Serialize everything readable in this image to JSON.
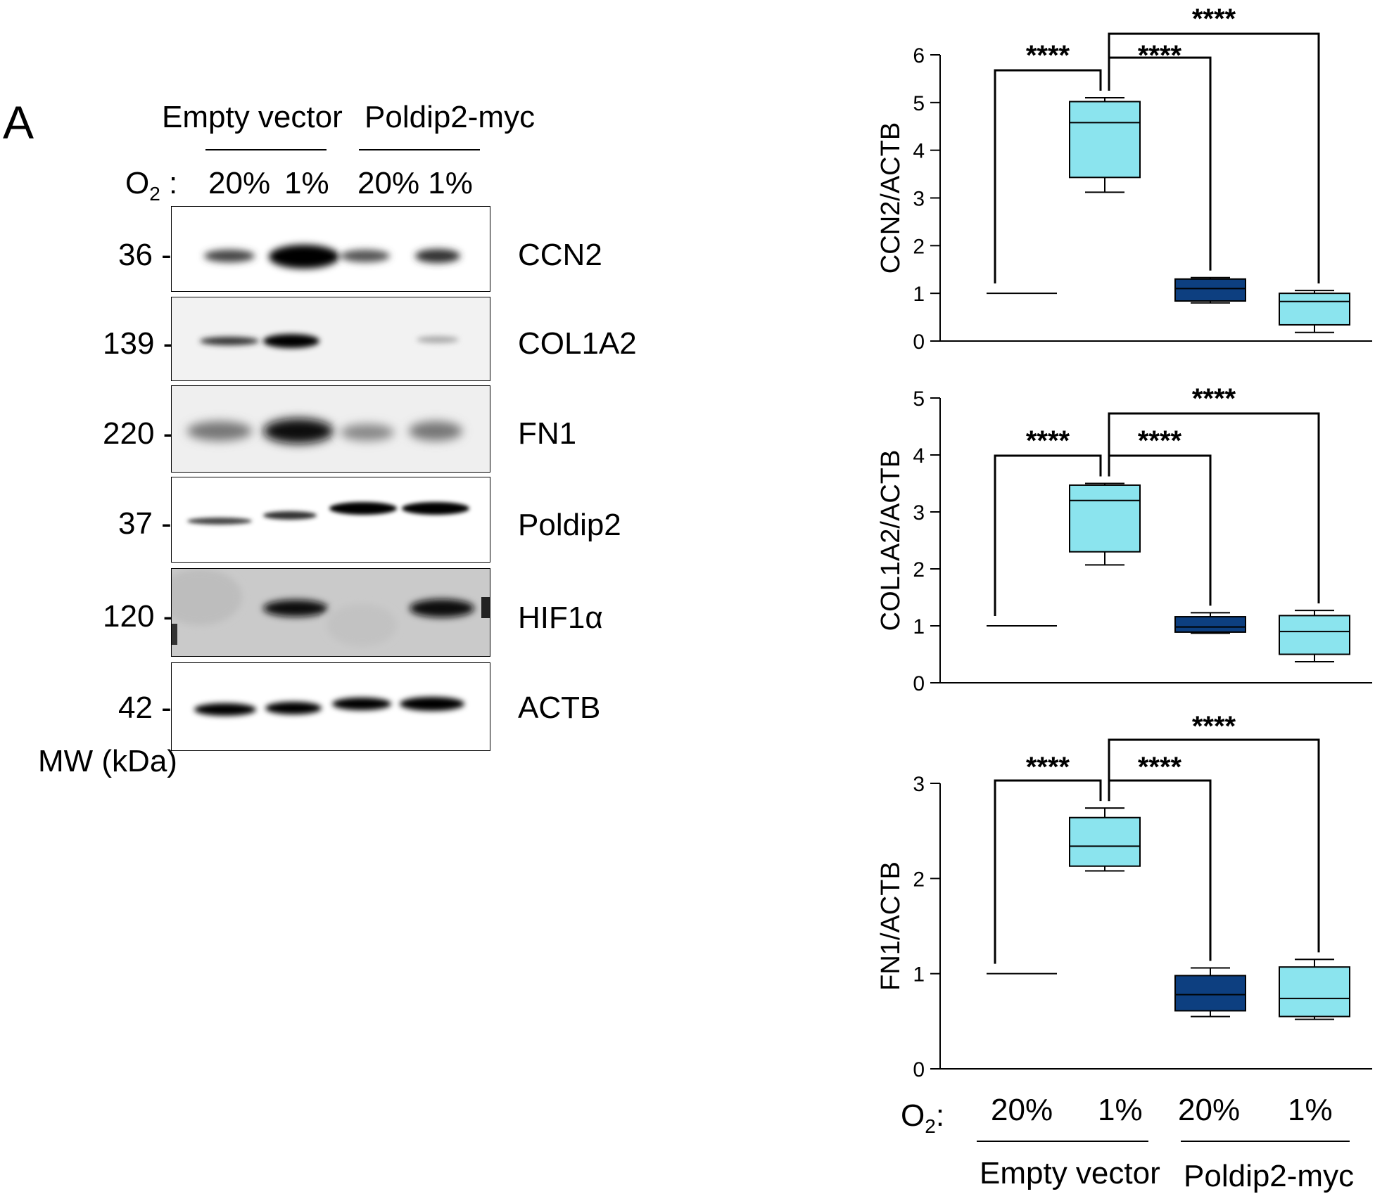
{
  "panel_label": "A",
  "blot": {
    "group_labels": [
      "Empty vector",
      "Poldip2-myc"
    ],
    "o2_label_main": "O",
    "o2_label_sub": "2",
    "o2_label_colon": " :",
    "lane_labels": [
      "20%",
      "1%",
      "20% 1%"
    ],
    "mw_axis_label": "MW (kDa)",
    "rows": [
      {
        "mw": "36 -",
        "protein": "CCN2"
      },
      {
        "mw": "139 -",
        "protein": "COL1A2"
      },
      {
        "mw": "220 -",
        "protein": "FN1"
      },
      {
        "mw": "37 -",
        "protein": "Poldip2"
      },
      {
        "mw": "120 -",
        "protein": "HIF1α"
      },
      {
        "mw": "42 -",
        "protein": "ACTB"
      }
    ]
  },
  "significance_label": "****",
  "x_axis": {
    "o2_label_main": "O",
    "o2_label_sub": "2",
    "o2_label_colon": ":",
    "categories": [
      "20%",
      "1%",
      "20%",
      "1%"
    ],
    "groups": [
      "Empty vector",
      "Poldip2-myc"
    ]
  },
  "colors": {
    "light_box": "#8be4ee",
    "dark_box": "#0d3f80",
    "line": "#000000"
  },
  "chart_data": [
    {
      "type": "box",
      "ylabel": "CCN2/ACTB",
      "ylim": [
        0,
        6
      ],
      "yticks": [
        0,
        1,
        2,
        3,
        4,
        5,
        6
      ],
      "categories": [
        "20%",
        "1%",
        "20%",
        "1%"
      ],
      "boxes": [
        {
          "min": 1.0,
          "q1": 1.0,
          "median": 1.0,
          "q3": 1.0,
          "max": 1.0,
          "color": "none"
        },
        {
          "min": 3.12,
          "q1": 3.43,
          "median": 4.58,
          "q3": 5.02,
          "max": 5.1,
          "color": "light"
        },
        {
          "min": 0.8,
          "q1": 0.84,
          "median": 1.1,
          "q3": 1.3,
          "max": 1.33,
          "color": "dark"
        },
        {
          "min": 0.18,
          "q1": 0.34,
          "median": 0.83,
          "q3": 1.0,
          "max": 1.06,
          "color": "light"
        }
      ],
      "comparisons": [
        {
          "from": 0,
          "to": 1,
          "label": "****"
        },
        {
          "from": 1,
          "to": 2,
          "label": "****"
        },
        {
          "from": 1,
          "to": 3,
          "label": "****"
        }
      ]
    },
    {
      "type": "box",
      "ylabel": "COL1A2/ACTB",
      "ylim": [
        0,
        5
      ],
      "yticks": [
        0,
        1,
        2,
        3,
        4,
        5
      ],
      "categories": [
        "20%",
        "1%",
        "20%",
        "1%"
      ],
      "boxes": [
        {
          "min": 1.0,
          "q1": 1.0,
          "median": 1.0,
          "q3": 1.0,
          "max": 1.0,
          "color": "none"
        },
        {
          "min": 2.07,
          "q1": 2.3,
          "median": 3.2,
          "q3": 3.47,
          "max": 3.5,
          "color": "light"
        },
        {
          "min": 0.87,
          "q1": 0.89,
          "median": 0.98,
          "q3": 1.16,
          "max": 1.23,
          "color": "dark"
        },
        {
          "min": 0.37,
          "q1": 0.5,
          "median": 0.9,
          "q3": 1.18,
          "max": 1.27,
          "color": "light"
        }
      ],
      "comparisons": [
        {
          "from": 0,
          "to": 1,
          "label": "****"
        },
        {
          "from": 1,
          "to": 2,
          "label": "****"
        },
        {
          "from": 1,
          "to": 3,
          "label": "****"
        }
      ]
    },
    {
      "type": "box",
      "ylabel": "FN1/ACTB",
      "ylim": [
        0,
        3
      ],
      "yticks": [
        0,
        1,
        2,
        3
      ],
      "categories": [
        "20%",
        "1%",
        "20%",
        "1%"
      ],
      "boxes": [
        {
          "min": 1.0,
          "q1": 1.0,
          "median": 1.0,
          "q3": 1.0,
          "max": 1.0,
          "color": "none"
        },
        {
          "min": 2.08,
          "q1": 2.13,
          "median": 2.34,
          "q3": 2.64,
          "max": 2.74,
          "color": "light"
        },
        {
          "min": 0.55,
          "q1": 0.61,
          "median": 0.78,
          "q3": 0.98,
          "max": 1.06,
          "color": "dark"
        },
        {
          "min": 0.52,
          "q1": 0.55,
          "median": 0.74,
          "q3": 1.07,
          "max": 1.15,
          "color": "light"
        }
      ],
      "comparisons": [
        {
          "from": 0,
          "to": 1,
          "label": "****"
        },
        {
          "from": 1,
          "to": 2,
          "label": "****"
        },
        {
          "from": 1,
          "to": 3,
          "label": "****"
        }
      ]
    }
  ]
}
